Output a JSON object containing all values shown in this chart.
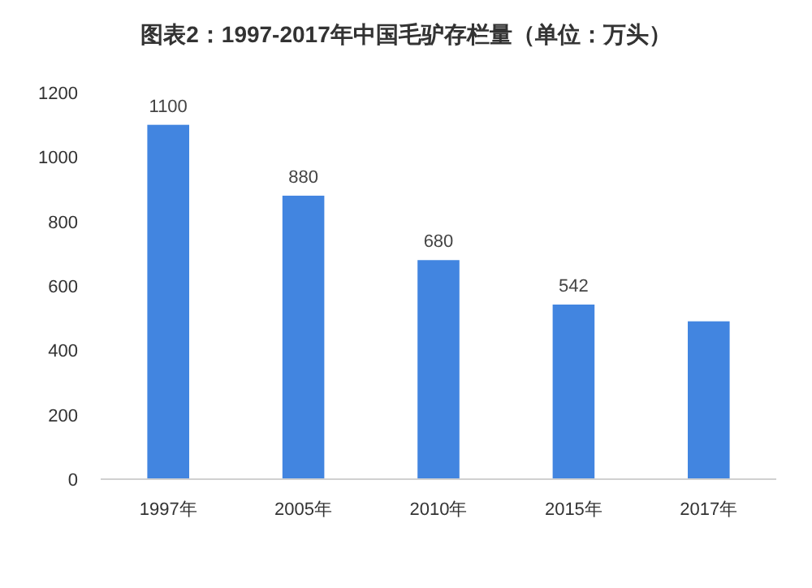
{
  "chart_data": {
    "type": "bar",
    "title": "图表2：1997-2017年中国毛驴存栏量（单位：万头）",
    "categories": [
      "1997年",
      "2005年",
      "2010年",
      "2015年",
      "2017年"
    ],
    "values": [
      1100,
      880,
      680,
      542,
      490
    ],
    "value_labels": [
      "1100",
      "880",
      "680",
      "542",
      null
    ],
    "color": "#4285e0",
    "ylim": [
      0,
      1200
    ],
    "yticks": [
      0,
      200,
      400,
      600,
      800,
      1000,
      1200
    ],
    "grid": false
  }
}
